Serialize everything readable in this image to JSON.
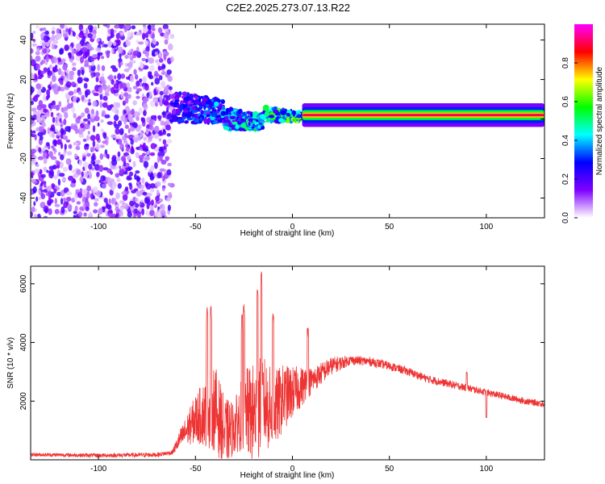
{
  "title": "C2E2.2025.273.07.13.R22",
  "colors": {
    "snr_line": "#ee3333",
    "frame": "#000000"
  },
  "chart_data": [
    {
      "type": "heatmap",
      "name": "spectrogram",
      "xlabel": "Height of straight line (km)",
      "ylabel": "Frequency (Hz)",
      "xlim": [
        -135,
        130
      ],
      "ylim": [
        -50,
        48
      ],
      "xticks": [
        -100,
        -50,
        0,
        50,
        100
      ],
      "yticks": [
        -40,
        -20,
        0,
        20,
        40
      ],
      "colorbar": {
        "label": "Normalized spectral amplitude",
        "range": [
          0,
          1
        ],
        "ticks": [
          "0.0",
          "0.2",
          "0.4",
          "0.6",
          "0.8"
        ],
        "colors": [
          "#ffffff",
          "#8000ff",
          "#0000ff",
          "#00ffff",
          "#00ff00",
          "#ffff00",
          "#ff0000",
          "#ff00ff"
        ]
      },
      "regions": [
        {
          "description": "noise",
          "x_range": [
            -135,
            -62
          ],
          "freq_range": [
            -50,
            48
          ],
          "amplitude": 0.2
        },
        {
          "description": "transition",
          "x_range": [
            -62,
            5
          ],
          "freq_center": 5,
          "amplitude": 0.5
        },
        {
          "description": "carrier line",
          "x_range": [
            5,
            130
          ],
          "freq_center": 2,
          "amplitude": 0.9
        }
      ]
    },
    {
      "type": "line",
      "name": "snr",
      "xlabel": "Height of straight line (km)",
      "ylabel": "SNR (10 * v/v)",
      "xlim": [
        -135,
        130
      ],
      "ylim": [
        0,
        6600
      ],
      "xticks": [
        -100,
        -50,
        0,
        50,
        100
      ],
      "yticks": [
        2000,
        4000,
        6000
      ],
      "envelope": {
        "x": [
          -135,
          -100,
          -70,
          -62,
          -58,
          -50,
          -45,
          -40,
          -35,
          -30,
          -25,
          -20,
          -15,
          -10,
          -5,
          0,
          5,
          10,
          20,
          30,
          40,
          50,
          60,
          70,
          80,
          90,
          100,
          110,
          120,
          130
        ],
        "y": [
          180,
          150,
          170,
          250,
          700,
          1400,
          1600,
          1800,
          900,
          1100,
          1700,
          1500,
          2000,
          1600,
          2100,
          2300,
          2500,
          2700,
          3200,
          3400,
          3350,
          3200,
          3000,
          2750,
          2600,
          2450,
          2300,
          2150,
          2000,
          1900
        ]
      },
      "noise_amplitude": {
        "x": [
          -135,
          -62,
          -55,
          -40,
          -30,
          -20,
          -10,
          0,
          10,
          30,
          60,
          100,
          130
        ],
        "y": [
          60,
          80,
          500,
          1500,
          900,
          1800,
          1400,
          900,
          450,
          160,
          140,
          120,
          110
        ]
      },
      "peaks": [
        {
          "x": -44,
          "y": 5200
        },
        {
          "x": -42,
          "y": 5250
        },
        {
          "x": -26,
          "y": 5000
        },
        {
          "x": -25,
          "y": 5300
        },
        {
          "x": -18,
          "y": 5800
        },
        {
          "x": -16,
          "y": 6450
        },
        {
          "x": -10,
          "y": 5000
        },
        {
          "x": 8,
          "y": 4500
        },
        {
          "x": 90,
          "y": 3000
        }
      ],
      "dips": [
        {
          "x": 100,
          "y": 1450
        }
      ]
    }
  ]
}
